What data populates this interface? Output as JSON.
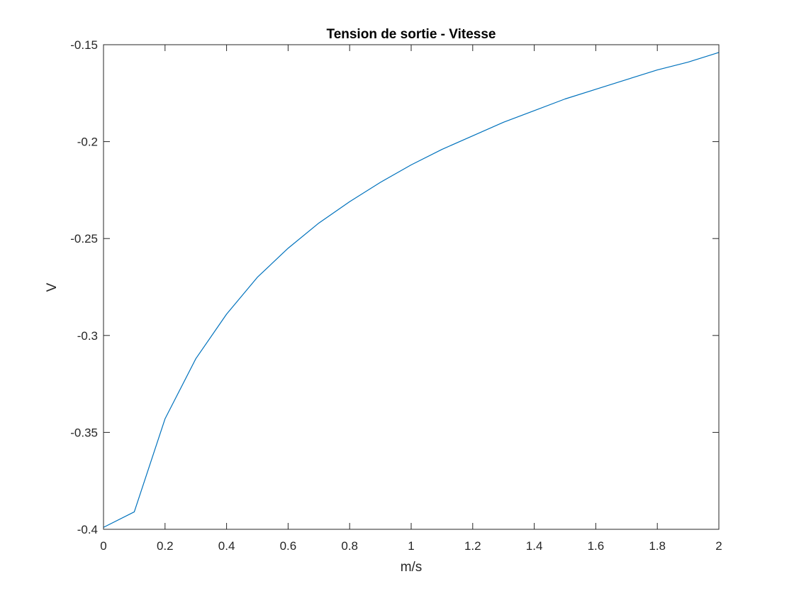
{
  "chart_data": {
    "type": "line",
    "title": "Tension de sortie - Vitesse",
    "xlabel": "m/s",
    "ylabel": "V",
    "xlim": [
      0,
      2
    ],
    "ylim": [
      -0.4,
      -0.15
    ],
    "xticks": [
      0,
      0.2,
      0.4,
      0.6,
      0.8,
      1,
      1.2,
      1.4,
      1.6,
      1.8,
      2
    ],
    "xtick_labels": [
      "0",
      "0.2",
      "0.4",
      "0.6",
      "0.8",
      "1",
      "1.2",
      "1.4",
      "1.6",
      "1.8",
      "2"
    ],
    "yticks": [
      -0.4,
      -0.35,
      -0.3,
      -0.25,
      -0.2,
      -0.15
    ],
    "ytick_labels": [
      "-0.4",
      "-0.35",
      "-0.3",
      "-0.25",
      "-0.2",
      "-0.15"
    ],
    "grid": false,
    "series": [
      {
        "color": "#0072bd",
        "x": [
          0,
          0.1,
          0.2,
          0.3,
          0.4,
          0.5,
          0.6,
          0.7,
          0.8,
          0.9,
          1.0,
          1.1,
          1.2,
          1.3,
          1.4,
          1.5,
          1.6,
          1.7,
          1.8,
          1.9,
          2.0
        ],
        "y": [
          -0.399,
          -0.391,
          -0.343,
          -0.312,
          -0.289,
          -0.27,
          -0.255,
          -0.242,
          -0.231,
          -0.221,
          -0.212,
          -0.204,
          -0.197,
          -0.19,
          -0.184,
          -0.178,
          -0.173,
          -0.168,
          -0.163,
          -0.159,
          -0.154
        ]
      }
    ]
  }
}
